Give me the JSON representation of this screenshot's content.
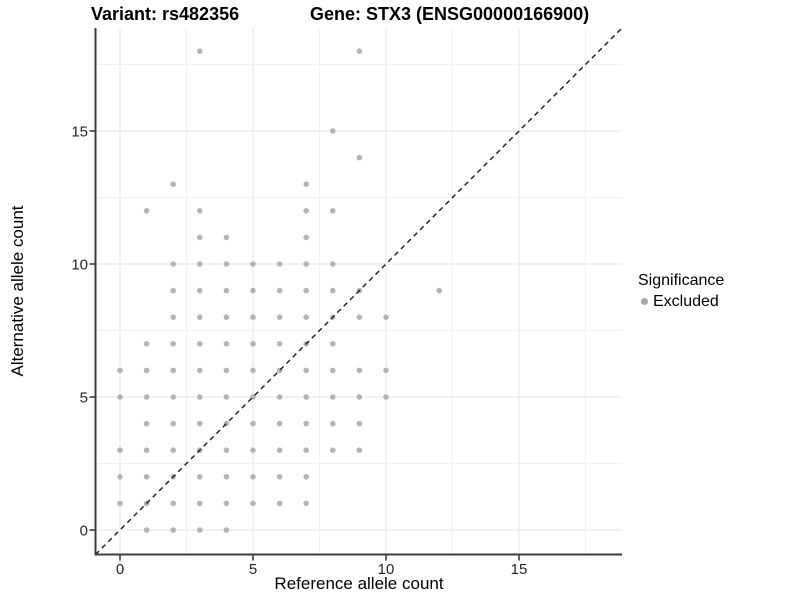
{
  "header": {
    "variant_title": "Variant: rs482356",
    "gene_title": "Gene: STX3 (ENSG00000166900)"
  },
  "chart_data": {
    "type": "scatter",
    "xlabel": "Reference allele count",
    "ylabel": "Alternative allele count",
    "xlim": [
      -0.9,
      18.9
    ],
    "ylim": [
      -0.9,
      18.9
    ],
    "x_ticks": [
      0,
      5,
      10,
      15
    ],
    "y_ticks": [
      0,
      5,
      10,
      15
    ],
    "minor_gridlines": [
      2.5,
      7.5,
      12.5,
      17.5
    ],
    "grid": true,
    "diagonal_line": {
      "style": "dashed",
      "slope": 1,
      "intercept": 0
    },
    "legend": {
      "title": "Significance",
      "position": "right",
      "items": [
        {
          "label": "Excluded",
          "color": "#a8a8a8"
        }
      ]
    },
    "series": [
      {
        "name": "Excluded",
        "points": [
          [
            1,
            0
          ],
          [
            2,
            0
          ],
          [
            3,
            0
          ],
          [
            4,
            0
          ],
          [
            0,
            1
          ],
          [
            1,
            1
          ],
          [
            2,
            1
          ],
          [
            3,
            1
          ],
          [
            4,
            1
          ],
          [
            5,
            1
          ],
          [
            6,
            1
          ],
          [
            7,
            1
          ],
          [
            0,
            2
          ],
          [
            1,
            2
          ],
          [
            2,
            2
          ],
          [
            3,
            2
          ],
          [
            4,
            2
          ],
          [
            5,
            2
          ],
          [
            6,
            2
          ],
          [
            7,
            2
          ],
          [
            0,
            3
          ],
          [
            1,
            3
          ],
          [
            2,
            3
          ],
          [
            3,
            3
          ],
          [
            4,
            3
          ],
          [
            5,
            3
          ],
          [
            6,
            3
          ],
          [
            7,
            3
          ],
          [
            8,
            3
          ],
          [
            9,
            3
          ],
          [
            1,
            4
          ],
          [
            2,
            4
          ],
          [
            3,
            4
          ],
          [
            4,
            4
          ],
          [
            5,
            4
          ],
          [
            6,
            4
          ],
          [
            7,
            4
          ],
          [
            8,
            4
          ],
          [
            9,
            4
          ],
          [
            0,
            5
          ],
          [
            1,
            5
          ],
          [
            2,
            5
          ],
          [
            3,
            5
          ],
          [
            4,
            5
          ],
          [
            5,
            5
          ],
          [
            6,
            5
          ],
          [
            7,
            5
          ],
          [
            8,
            5
          ],
          [
            9,
            5
          ],
          [
            10,
            5
          ],
          [
            0,
            6
          ],
          [
            1,
            6
          ],
          [
            2,
            6
          ],
          [
            3,
            6
          ],
          [
            4,
            6
          ],
          [
            5,
            6
          ],
          [
            6,
            6
          ],
          [
            7,
            6
          ],
          [
            8,
            6
          ],
          [
            9,
            6
          ],
          [
            10,
            6
          ],
          [
            1,
            7
          ],
          [
            2,
            7
          ],
          [
            3,
            7
          ],
          [
            4,
            7
          ],
          [
            5,
            7
          ],
          [
            6,
            7
          ],
          [
            7,
            7
          ],
          [
            8,
            7
          ],
          [
            2,
            8
          ],
          [
            3,
            8
          ],
          [
            4,
            8
          ],
          [
            5,
            8
          ],
          [
            6,
            8
          ],
          [
            7,
            8
          ],
          [
            8,
            8
          ],
          [
            9,
            8
          ],
          [
            10,
            8
          ],
          [
            2,
            9
          ],
          [
            3,
            9
          ],
          [
            4,
            9
          ],
          [
            5,
            9
          ],
          [
            6,
            9
          ],
          [
            7,
            9
          ],
          [
            8,
            9
          ],
          [
            9,
            9
          ],
          [
            12,
            9
          ],
          [
            2,
            10
          ],
          [
            3,
            10
          ],
          [
            4,
            10
          ],
          [
            5,
            10
          ],
          [
            6,
            10
          ],
          [
            7,
            10
          ],
          [
            8,
            10
          ],
          [
            3,
            11
          ],
          [
            4,
            11
          ],
          [
            7,
            11
          ],
          [
            1,
            12
          ],
          [
            3,
            12
          ],
          [
            7,
            12
          ],
          [
            8,
            12
          ],
          [
            2,
            13
          ],
          [
            7,
            13
          ],
          [
            9,
            14
          ],
          [
            8,
            15
          ],
          [
            3,
            18
          ],
          [
            9,
            18
          ]
        ]
      }
    ]
  },
  "colors": {
    "point": "#a8a8a8",
    "diagonal_line": "#1a1a1a",
    "axis_line": "#3c3c3c",
    "tick_label": "#262626",
    "grid_major": "#e9e9e9",
    "grid_minor": "#f2f2f2",
    "background": "#ffffff"
  }
}
